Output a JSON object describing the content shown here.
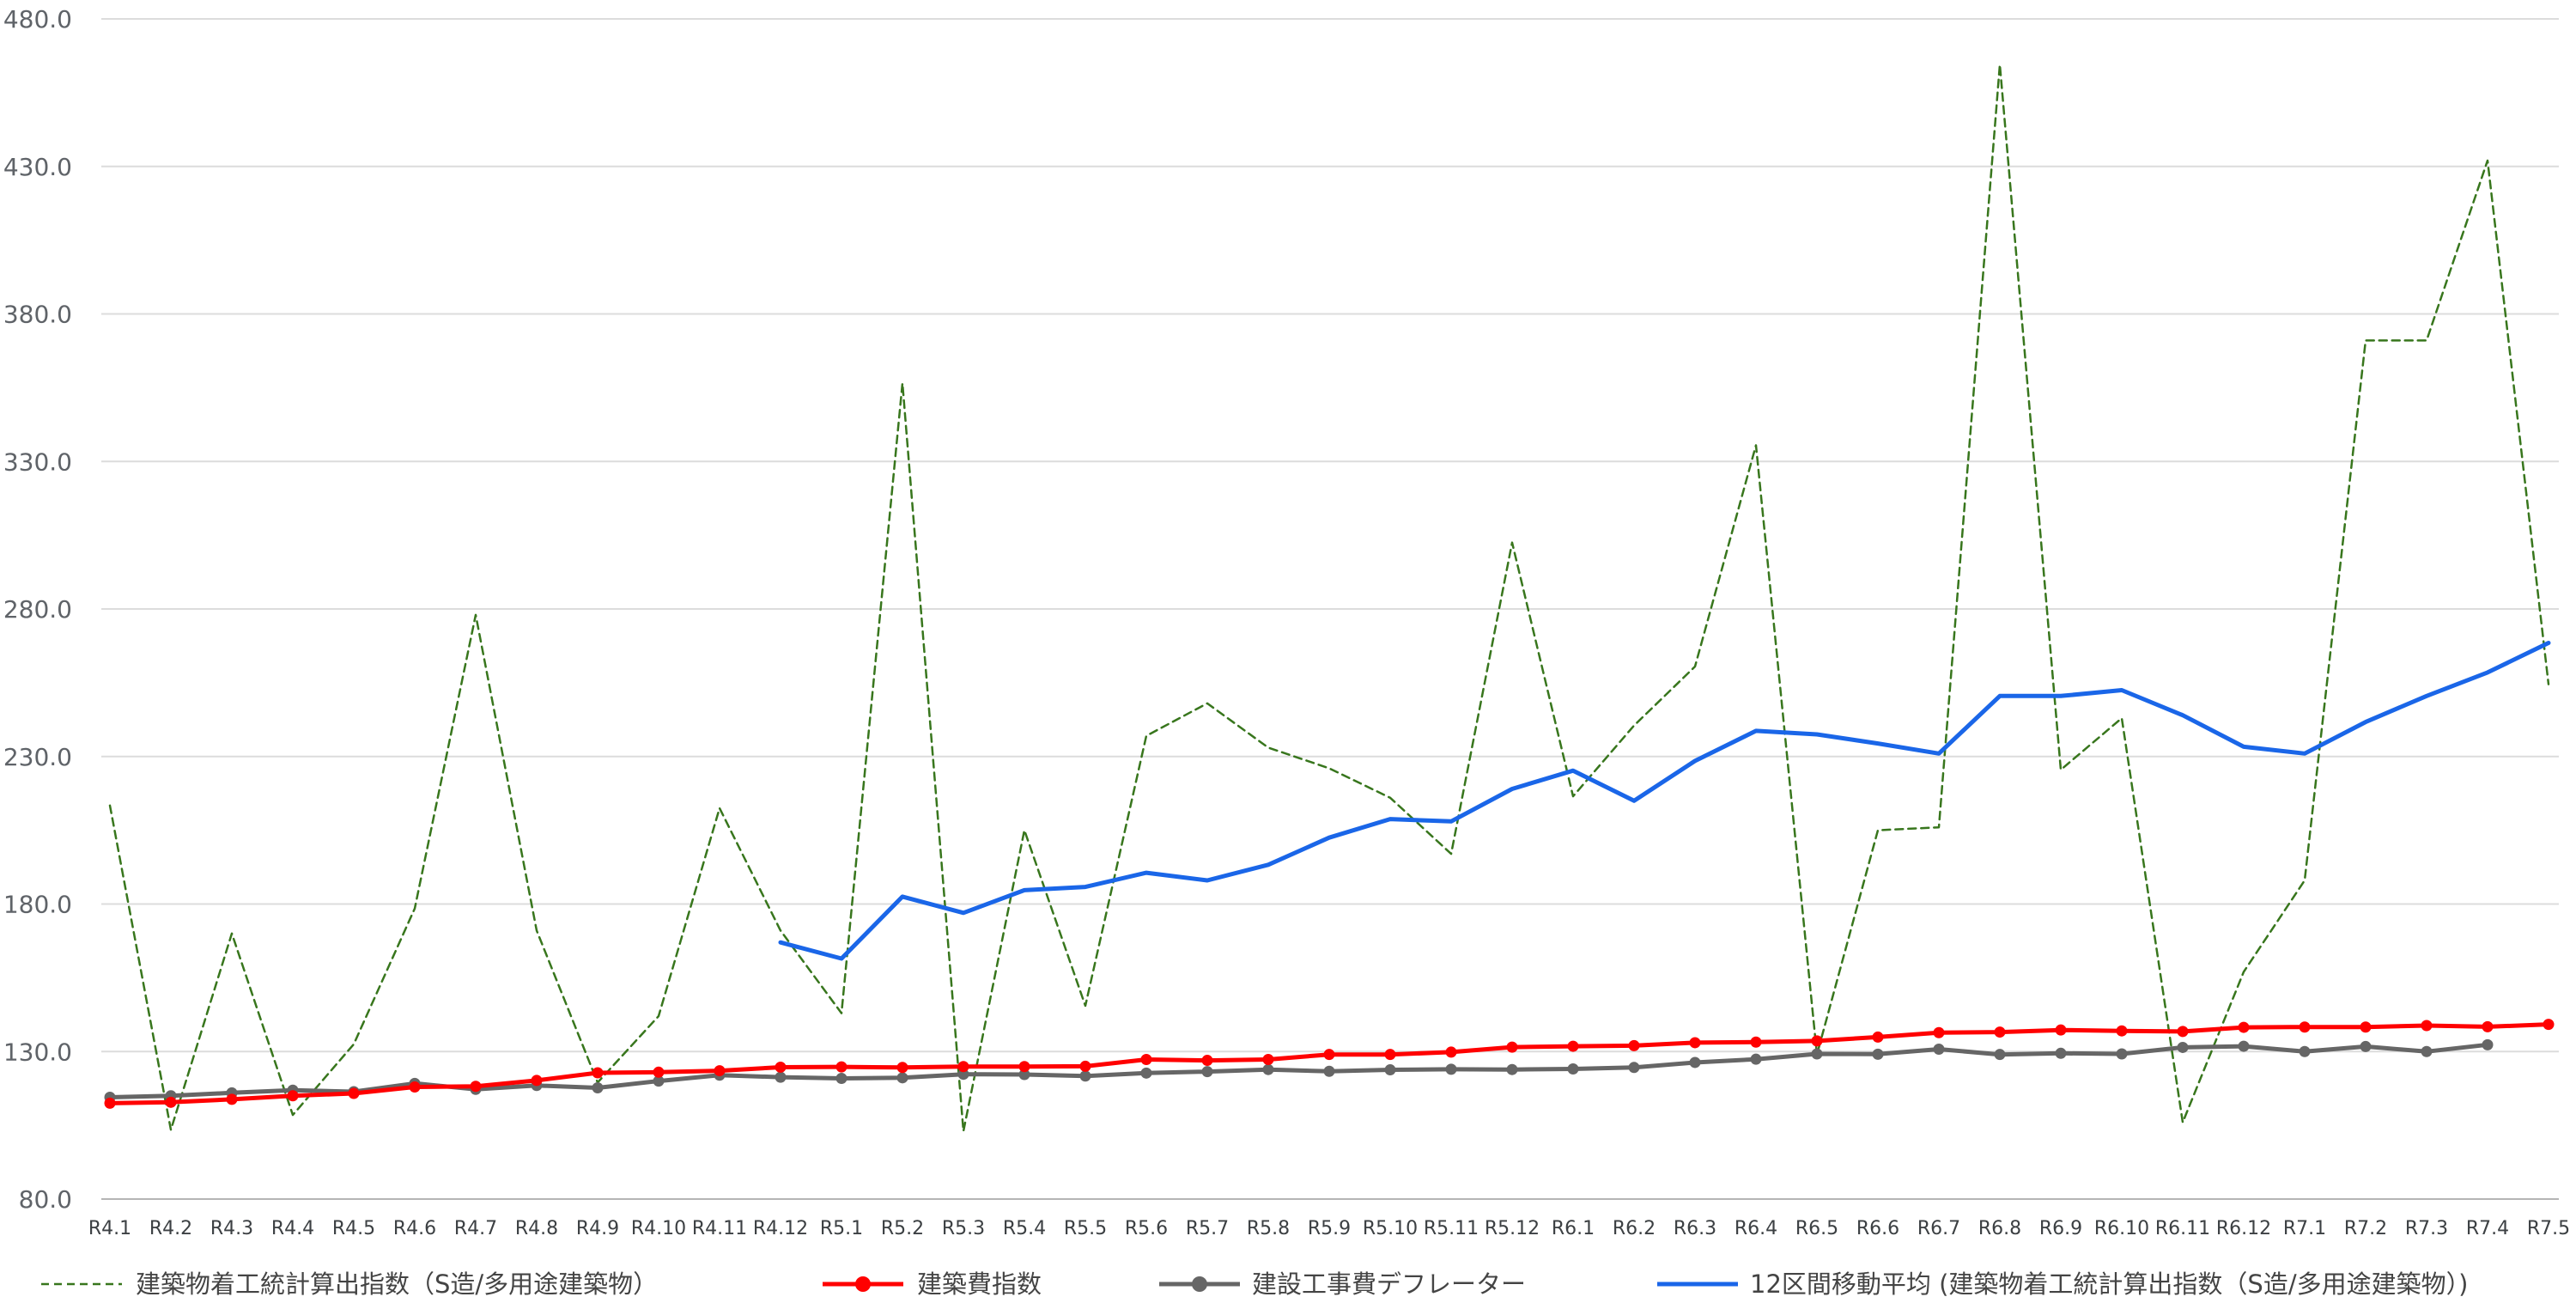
{
  "chart_data": {
    "type": "line",
    "title": "",
    "xlabel": "",
    "ylabel": "",
    "ylim": [
      80,
      480
    ],
    "y_ticks": [
      "80.0",
      "130.0",
      "180.0",
      "230.0",
      "280.0",
      "330.0",
      "380.0",
      "430.0",
      "480.0"
    ],
    "grid": true,
    "legend_position": "bottom",
    "categories": [
      "R4.1",
      "R4.2",
      "R4.3",
      "R4.4",
      "R4.5",
      "R4.6",
      "R4.7",
      "R4.8",
      "R4.9",
      "R4.10",
      "R4.11",
      "R4.12",
      "R5.1",
      "R5.2",
      "R5.3",
      "R5.4",
      "R5.5",
      "R5.6",
      "R5.7",
      "R5.8",
      "R5.9",
      "R5.10",
      "R5.11",
      "R5.12",
      "R6.1",
      "R6.2",
      "R6.3",
      "R6.4",
      "R6.5",
      "R6.6",
      "R6.7",
      "R6.8",
      "R6.9",
      "R6.10",
      "R6.11",
      "R6.12",
      "R7.1",
      "R7.2",
      "R7.3",
      "R7.4",
      "R7.5"
    ],
    "series": [
      {
        "name": "建築物着工統計算出指数（S造/多用途建築物）",
        "color": "#38761d",
        "style": "dashed",
        "values": [
          213.4,
          103.5,
          170.0,
          108.5,
          132.5,
          178.5,
          278.0,
          171.0,
          119.5,
          142.0,
          212.5,
          171.0,
          143.0,
          356.5,
          103.0,
          205.0,
          145.5,
          237.0,
          248.0,
          233.0,
          226.0,
          216.0,
          197.0,
          302.5,
          216.5,
          240.5,
          260.5,
          335.5,
          129.0,
          205.0,
          206.0,
          464.5,
          225.5,
          243.0,
          106.0,
          157.0,
          188.0,
          371.0,
          371.0,
          432.0,
          254.5
        ]
      },
      {
        "name": "建築費指数",
        "color": "#ff0000",
        "style": "solid-marker",
        "values": [
          112.5,
          112.8,
          113.8,
          115.0,
          115.8,
          118.0,
          118.2,
          120.2,
          122.8,
          123.0,
          123.5,
          124.7,
          124.8,
          124.6,
          124.9,
          124.9,
          125.0,
          127.3,
          127.0,
          127.3,
          129.0,
          129.0,
          129.8,
          131.5,
          131.8,
          132.0,
          133.0,
          133.2,
          133.6,
          134.9,
          136.4,
          136.6,
          137.3,
          137.0,
          136.8,
          138.2,
          138.3,
          138.3,
          138.8,
          138.4,
          139.2
        ]
      },
      {
        "name": "建設工事費デフレーター",
        "color": "#666666",
        "style": "solid-marker",
        "values": [
          114.5,
          115.0,
          116.0,
          116.9,
          116.4,
          119.2,
          117.2,
          118.5,
          117.7,
          120.0,
          122.0,
          121.3,
          120.9,
          121.1,
          122.3,
          122.2,
          121.7,
          122.7,
          123.2,
          123.9,
          123.3,
          123.8,
          124.0,
          123.9,
          124.1,
          124.6,
          126.3,
          127.4,
          129.2,
          129.1,
          130.8,
          129.0,
          129.4,
          129.2,
          131.4,
          131.8,
          130.0,
          131.7,
          130.0,
          132.3,
          null
        ]
      },
      {
        "name": "12区間移動平均 (建築物着工統計算出指数（S造/多用途建築物）)",
        "color": "#1a66e8",
        "style": "solid",
        "values": [
          null,
          null,
          null,
          null,
          null,
          null,
          null,
          null,
          null,
          null,
          null,
          167.0,
          161.5,
          182.5,
          177.0,
          184.7,
          185.8,
          190.6,
          188.0,
          193.3,
          202.5,
          208.8,
          208.0,
          219.0,
          225.2,
          215.0,
          228.5,
          238.7,
          237.5,
          234.4,
          231.0,
          250.5,
          250.5,
          252.5,
          244.0,
          233.3,
          231.0,
          241.7,
          250.5,
          258.5,
          268.5
        ]
      }
    ]
  }
}
